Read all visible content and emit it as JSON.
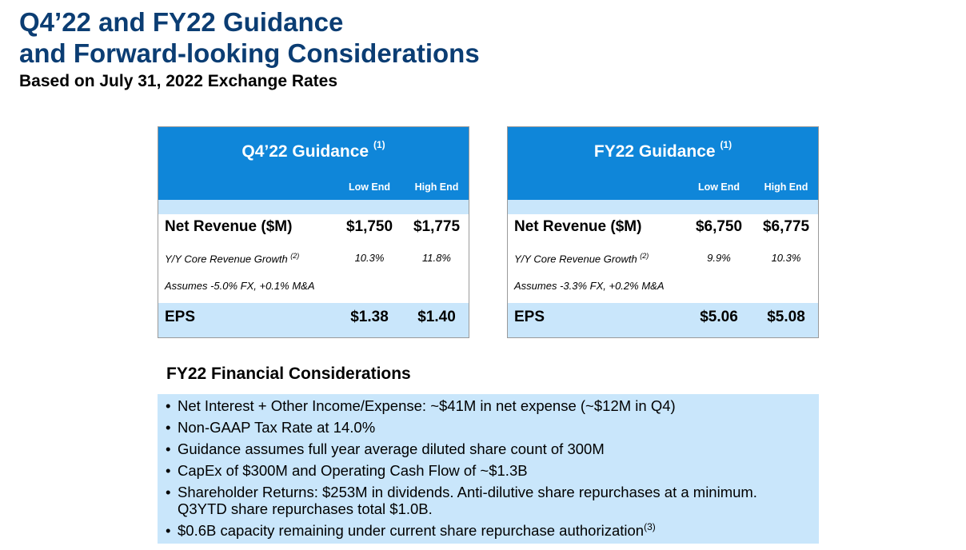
{
  "header": {
    "title_line1": "Q4’22 and FY22 Guidance",
    "title_line2": "and Forward-looking Considerations",
    "subtitle": "Based on July 31, 2022 Exchange Rates"
  },
  "q4": {
    "title": "Q4’22 Guidance",
    "title_note": "(1)",
    "col_low": "Low End",
    "col_high": "High End",
    "revenue_label": "Net Revenue ($M)",
    "revenue_low": "$1,750",
    "revenue_high": "$1,775",
    "growth_label": "Y/Y Core Revenue Growth",
    "growth_note": "(2)",
    "growth_low": "10.3%",
    "growth_high": "11.8%",
    "assumes": "Assumes -5.0% FX, +0.1% M&A",
    "eps_label": "EPS",
    "eps_low": "$1.38",
    "eps_high": "$1.40"
  },
  "fy": {
    "title": "FY22 Guidance",
    "title_note": "(1)",
    "col_low": "Low End",
    "col_high": "High End",
    "revenue_label": "Net Revenue ($M)",
    "revenue_low": "$6,750",
    "revenue_high": "$6,775",
    "growth_label": "Y/Y Core Revenue Growth",
    "growth_note": "(2)",
    "growth_low": "9.9%",
    "growth_high": "10.3%",
    "assumes": "Assumes -3.3% FX, +0.2% M&A",
    "eps_label": "EPS",
    "eps_low": "$5.06",
    "eps_high": "$5.08"
  },
  "considerations": {
    "title": "FY22 Financial Considerations",
    "bullet_glyph": "•",
    "items": [
      "Net Interest + Other Income/Expense: ~$41M in net expense (~$12M in Q4)",
      "Non-GAAP Tax Rate at 14.0%",
      "Guidance assumes full year average diluted share count of 300M",
      "CapEx of $300M and Operating Cash Flow of ~$1.3B",
      "Shareholder Returns: $253M in dividends. Anti-dilutive share repurchases at a minimum. Q3YTD share repurchases total $1.0B.",
      "$0.6B capacity remaining under current share repurchase authorization"
    ],
    "last_note": "(3)"
  },
  "colors": {
    "title": "#0b3d73",
    "header_band": "#0f86d9",
    "light_band": "#c9e6fb"
  }
}
